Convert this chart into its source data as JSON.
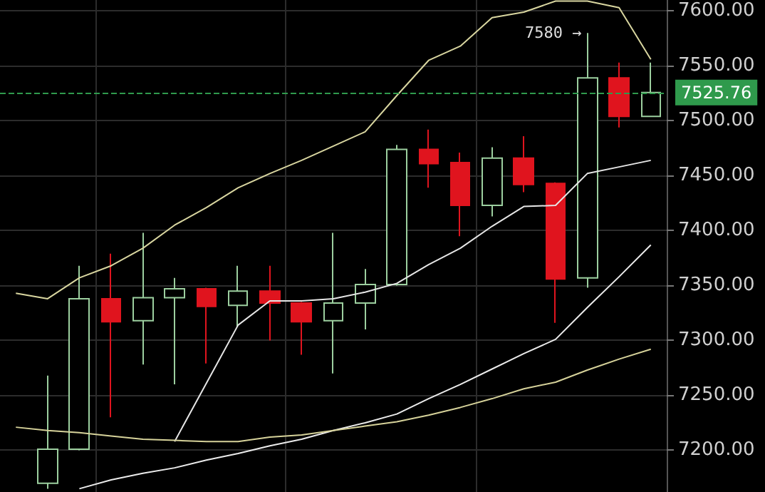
{
  "chart_data": {
    "type": "candlestick",
    "categories": [
      null,
      null,
      null,
      null,
      null,
      null,
      null,
      null,
      null,
      null,
      null,
      null,
      null,
      null,
      null,
      null,
      null,
      null,
      null,
      null,
      null
    ],
    "ohlc": [
      null,
      [
        7170,
        7268,
        7165,
        7201
      ],
      [
        7201,
        7368,
        7200,
        7338
      ],
      [
        7338,
        7379,
        7230,
        7317
      ],
      [
        7318,
        7398,
        7278,
        7339
      ],
      [
        7339,
        7357,
        7260,
        7347
      ],
      [
        7347,
        7348,
        7279,
        7331
      ],
      [
        7332,
        7368,
        7312,
        7345
      ],
      [
        7345,
        7368,
        7300,
        7334
      ],
      [
        7334,
        7335,
        7287,
        7317
      ],
      [
        7318,
        7398,
        7270,
        7334
      ],
      [
        7334,
        7365,
        7310,
        7351
      ],
      [
        7351,
        7478,
        7350,
        7474
      ],
      [
        7474,
        7492,
        7439,
        7461
      ],
      [
        7462,
        7471,
        7395,
        7423
      ],
      [
        7423,
        7476,
        7413,
        7466
      ],
      [
        7466,
        7486,
        7435,
        7442
      ],
      [
        7443,
        7444,
        7316,
        7356
      ],
      [
        7357,
        7580,
        7348,
        7539
      ],
      [
        7539,
        7553,
        7494,
        7504
      ],
      [
        7504,
        7553,
        7504,
        7525.76
      ]
    ],
    "colors": [
      null,
      "#9ccf9f",
      "#9ccf9f",
      "#e0141e",
      "#9ccf9f",
      "#9ccf9f",
      "#e0141e",
      "#9ccf9f",
      "#e0141e",
      "#e0141e",
      "#9ccf9f",
      "#9ccf9f",
      "#9ccf9f",
      "#e0141e",
      "#e0141e",
      "#9ccf9f",
      "#e0141e",
      "#e0141e",
      "#9ccf9f",
      "#e0141e",
      "#9ccf9f"
    ],
    "series": [
      {
        "type": "line",
        "color": "#d9d6a0",
        "values": [
          7343,
          7338,
          7357,
          7368,
          7384,
          7405,
          7421,
          7439,
          7452,
          7464,
          7477,
          7490,
          7523,
          7555,
          7568,
          7594,
          7599,
          7609,
          7609,
          7603,
          7556
        ]
      },
      {
        "type": "line",
        "color": "#e6e6e6",
        "values": [
          null,
          null,
          null,
          null,
          null,
          7208,
          7261,
          7314,
          7336,
          7336,
          7338,
          7344,
          7352,
          7369,
          7384,
          7404,
          7422,
          7423,
          7452,
          7458,
          7464
        ]
      },
      {
        "type": "line",
        "color": "#ececec",
        "values": [
          null,
          null,
          7165,
          7173,
          7179,
          7184,
          7191,
          7197,
          7204,
          7210,
          7218,
          7225,
          7233,
          7247,
          7260,
          7274,
          7288,
          7301,
          7330,
          7358,
          7387
        ]
      },
      {
        "type": "line",
        "color": "#d6d29a",
        "values": [
          7221,
          7218,
          7216,
          7213,
          7210,
          7209,
          7208,
          7208,
          7212,
          7214,
          7218,
          7222,
          7226,
          7232,
          7239,
          7247,
          7256,
          7262,
          7273,
          7283,
          7292
        ]
      }
    ],
    "ylim": [
      7162,
      7610
    ],
    "yticks": [
      {
        "value": 7200,
        "label": "7200.00"
      },
      {
        "value": 7250,
        "label": "7250.00"
      },
      {
        "value": 7300,
        "label": "7300.00"
      },
      {
        "value": 7350,
        "label": "7350.00"
      },
      {
        "value": 7400,
        "label": "7400.00"
      },
      {
        "value": 7450,
        "label": "7450.00"
      },
      {
        "value": 7500,
        "label": "7500.00"
      },
      {
        "value": 7550,
        "label": "7550.00"
      },
      {
        "value": 7600,
        "label": "7600.00"
      }
    ],
    "tick_labels": "y",
    "grid": true,
    "marker": "none",
    "line_style": "solid",
    "ref_lines": [
      {
        "axis": "y",
        "value": 7525.76,
        "label": "7525.76",
        "color": "#2f9a4c",
        "line_style": "dashed"
      }
    ],
    "annotations": [
      "7580 →"
    ]
  }
}
